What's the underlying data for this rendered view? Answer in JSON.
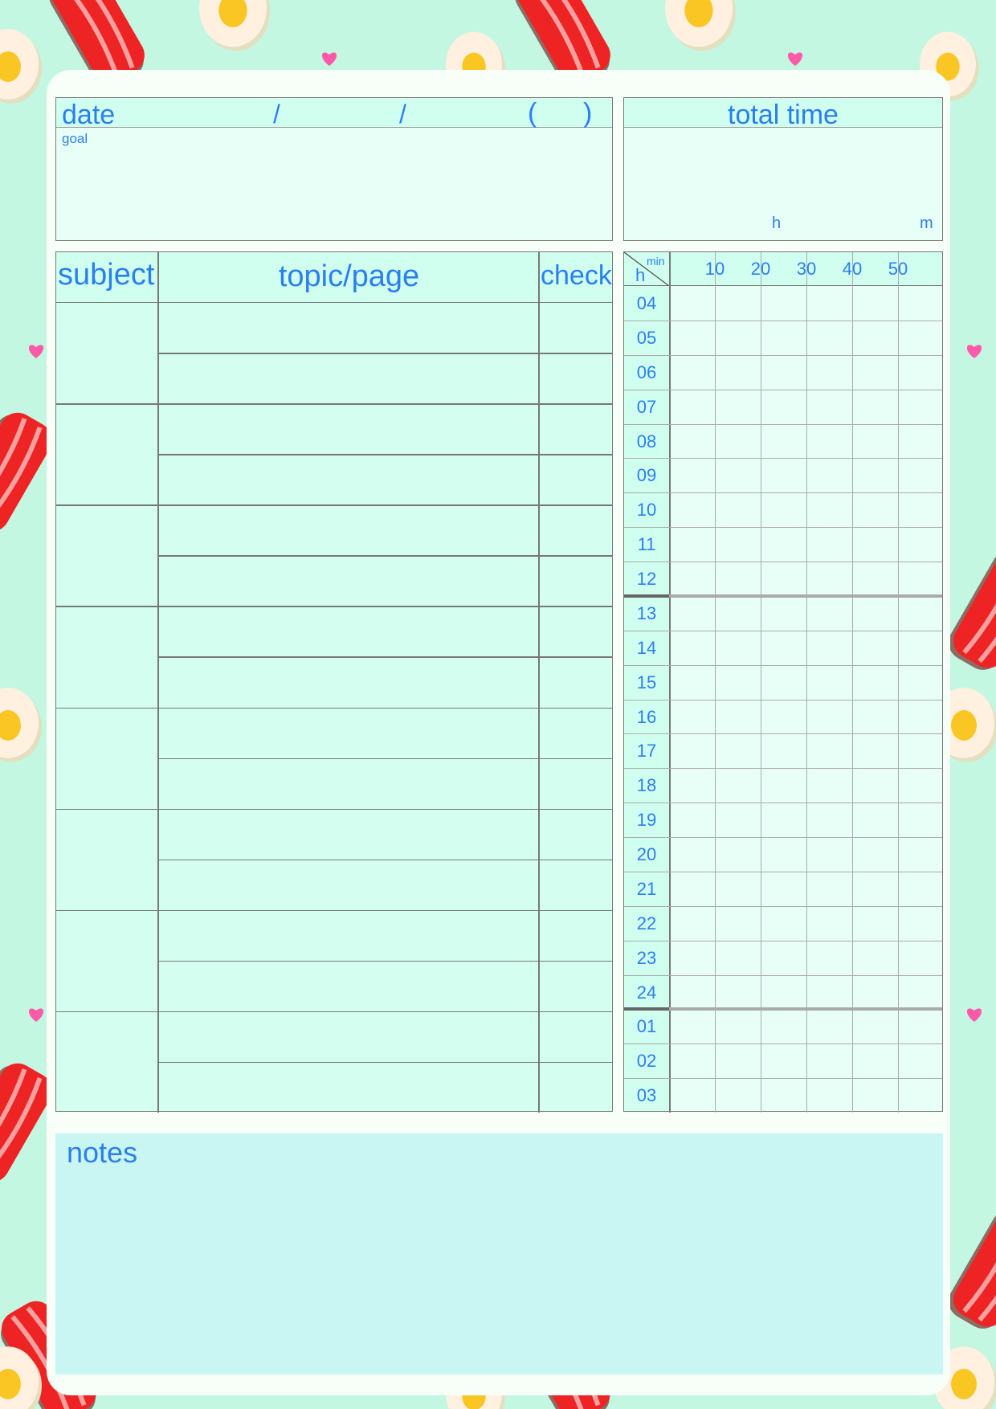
{
  "colors": {
    "background": "#c3f7e1",
    "paper": "#f8fff8",
    "text": "#2a7ff0",
    "header_fill": "#d0fff0",
    "cell_fill": "#e8fff8",
    "notes_fill": "#c9f5f3"
  },
  "date_box": {
    "label": "date",
    "sep1": "/",
    "sep2": "/",
    "paren_open": "(",
    "paren_close": ")",
    "goal_label": "goal"
  },
  "total_time": {
    "label": "total time",
    "hours_unit": "h",
    "minutes_unit": "m"
  },
  "study_table": {
    "headers": {
      "subject": "subject",
      "topic": "topic/page",
      "check": "check"
    },
    "subject_groups": 8,
    "rows_per_group": 2
  },
  "timeline": {
    "corner_h": "h",
    "corner_min": "min",
    "minute_labels": [
      "10",
      "20",
      "30",
      "40",
      "50"
    ],
    "hours": [
      "04",
      "05",
      "06",
      "07",
      "08",
      "09",
      "10",
      "11",
      "12",
      "13",
      "14",
      "15",
      "16",
      "17",
      "18",
      "19",
      "20",
      "21",
      "22",
      "23",
      "24",
      "01",
      "02",
      "03"
    ]
  },
  "notes": {
    "label": "notes"
  }
}
